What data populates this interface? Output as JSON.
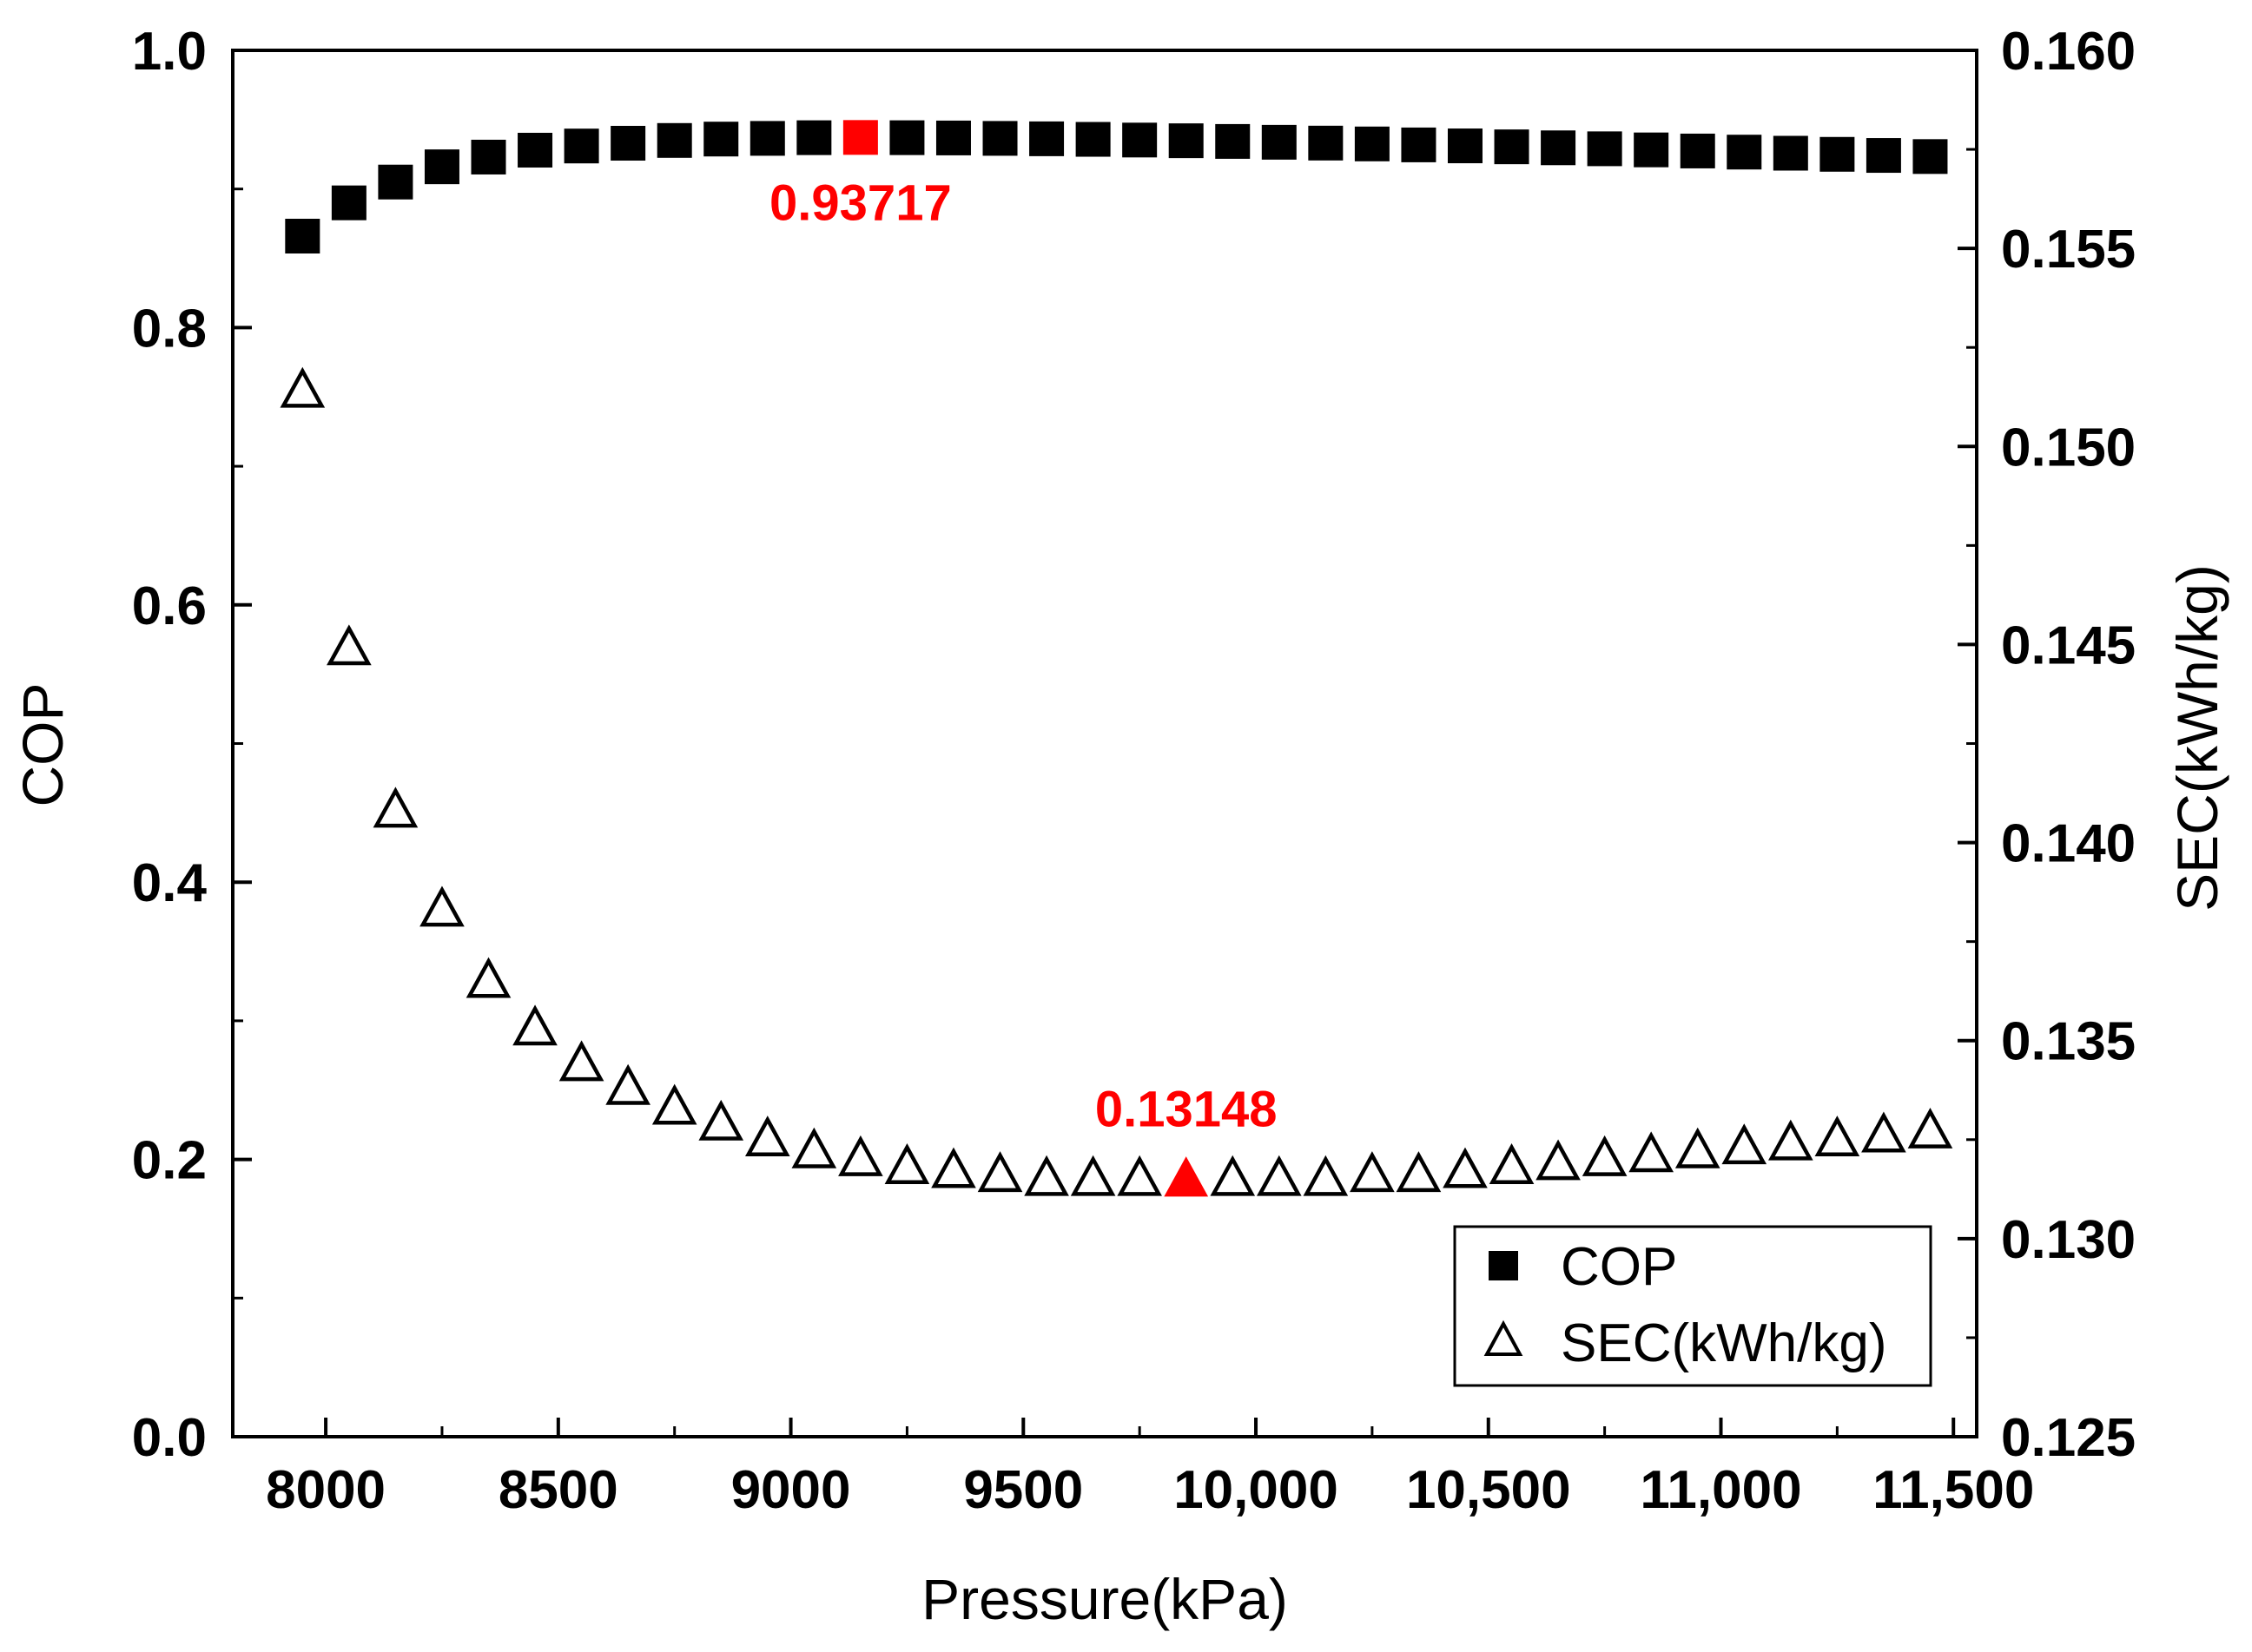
{
  "chart_data": {
    "type": "scatter",
    "xlabel": "Pressure(kPa)",
    "ylabel_left": "COP",
    "ylabel_right": "SEC(kWh/kg)",
    "xlim": [
      7800,
      11550
    ],
    "ylim_left": [
      0.0,
      1.0
    ],
    "ylim_right": [
      0.125,
      0.16
    ],
    "x_ticks": [
      8000,
      8500,
      9000,
      9500,
      10000,
      10500,
      11000,
      11500
    ],
    "x_tick_labels": [
      "8000",
      "8500",
      "9000",
      "9500",
      "10,000",
      "10,500",
      "11,000",
      "11,500"
    ],
    "y_left_ticks": [
      0.0,
      0.2,
      0.4,
      0.6,
      0.8,
      1.0
    ],
    "y_left_tick_labels": [
      "0.0",
      "0.2",
      "0.4",
      "0.6",
      "0.8",
      "1.0"
    ],
    "y_right_ticks": [
      0.125,
      0.13,
      0.135,
      0.14,
      0.145,
      0.15,
      0.155,
      0.16
    ],
    "y_right_tick_labels": [
      "0.125",
      "0.130",
      "0.135",
      "0.140",
      "0.145",
      "0.150",
      "0.155",
      "0.160"
    ],
    "x": [
      7950,
      8050,
      8150,
      8250,
      8350,
      8450,
      8550,
      8650,
      8750,
      8850,
      8950,
      9050,
      9150,
      9250,
      9350,
      9450,
      9550,
      9650,
      9750,
      9850,
      9950,
      10050,
      10150,
      10250,
      10350,
      10450,
      10550,
      10650,
      10750,
      10850,
      10950,
      11050,
      11150,
      11250,
      11350,
      11450
    ],
    "series": [
      {
        "name": "COP",
        "axis": "left",
        "marker": "filled-square",
        "values": [
          0.866,
          0.89,
          0.905,
          0.916,
          0.923,
          0.928,
          0.931,
          0.933,
          0.935,
          0.936,
          0.9365,
          0.937,
          0.93717,
          0.937,
          0.9368,
          0.9365,
          0.9362,
          0.9358,
          0.9353,
          0.9348,
          0.9343,
          0.9337,
          0.9331,
          0.9325,
          0.9318,
          0.9311,
          0.9304,
          0.9297,
          0.929,
          0.9282,
          0.9274,
          0.9266,
          0.9258,
          0.925,
          0.9242,
          0.9234
        ]
      },
      {
        "name": "SEC(kWh/kg)",
        "axis": "right",
        "marker": "open-triangle",
        "values": [
          0.1514,
          0.1449,
          0.1408,
          0.1383,
          0.1365,
          0.1353,
          0.1344,
          0.1338,
          0.1333,
          0.1329,
          0.1325,
          0.1322,
          0.132,
          0.1318,
          0.1317,
          0.1316,
          0.1315,
          0.1315,
          0.1315,
          0.13148,
          0.1315,
          0.1315,
          0.1315,
          0.1316,
          0.1316,
          0.1317,
          0.1318,
          0.1319,
          0.132,
          0.1321,
          0.1322,
          0.1323,
          0.1324,
          0.1325,
          0.1326,
          0.1327
        ]
      }
    ],
    "highlights": [
      {
        "series": "COP",
        "x": 9150,
        "value": 0.93717,
        "label": "0.93717",
        "color": "#ff0000"
      },
      {
        "series": "SEC(kWh/kg)",
        "x": 9850,
        "value": 0.13148,
        "label": "0.13148",
        "color": "#ff0000"
      }
    ],
    "legend": {
      "position": "bottom-right",
      "entries": [
        {
          "label": "COP",
          "marker": "filled-square"
        },
        {
          "label": "SEC(kWh/kg)",
          "marker": "open-triangle"
        }
      ]
    },
    "grid": false,
    "colors": {
      "marker": "#000000",
      "highlight": "#ff0000",
      "axis": "#000000"
    }
  }
}
